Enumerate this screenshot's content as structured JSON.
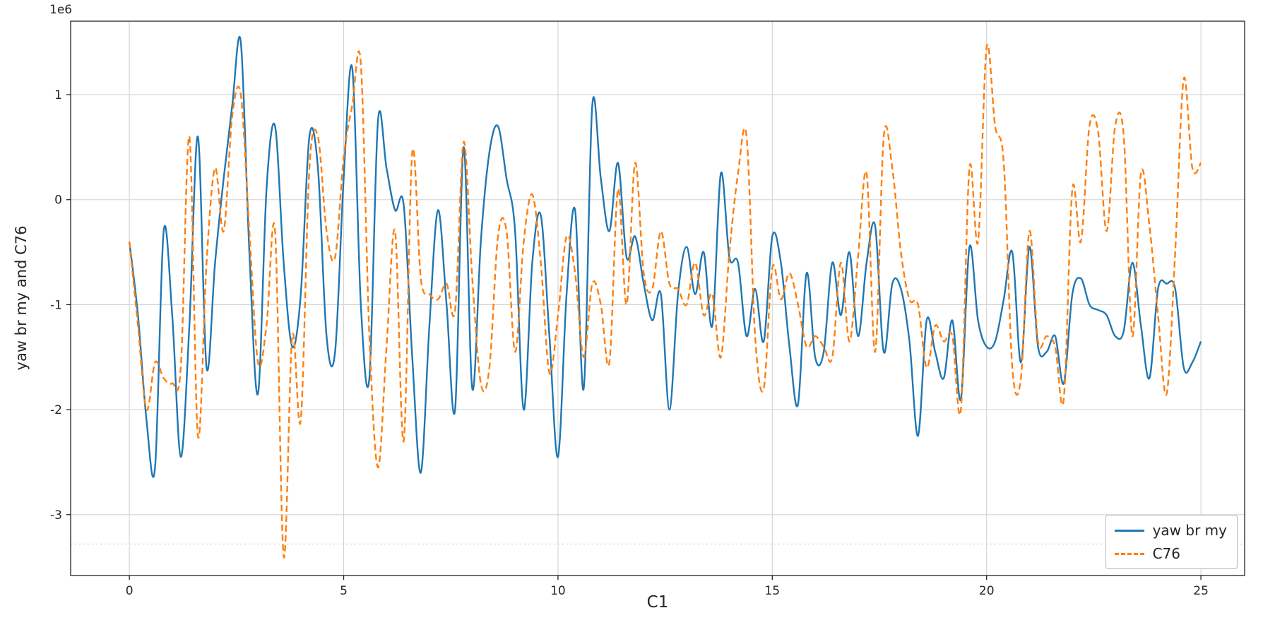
{
  "figure": {
    "offset_text": "1e6",
    "background": "#ffffff"
  },
  "chart_data": {
    "type": "line",
    "title": "",
    "xlabel": "C1",
    "ylabel": "yaw br my and C76",
    "y_offset_multiplier": "1e6",
    "y_values_unit": "1e6 (all y values below are in millions)",
    "xlim": [
      -1.37,
      26.02
    ],
    "ylim": [
      -3.58,
      1.7
    ],
    "xticks": [
      0,
      5,
      10,
      15,
      20,
      25
    ],
    "yticks": [
      1,
      0,
      -1,
      -2,
      -3
    ],
    "grid": true,
    "grid_color": "#d3d3d3",
    "extra_gridline": {
      "y": -3.28,
      "style": "dotted",
      "color": "#c9c9c9"
    },
    "legend_position": "lower right",
    "x": {
      "start": 0,
      "step": 0.2,
      "count": 126
    },
    "series": [
      {
        "name": "yaw br my",
        "color": "#1f77b4",
        "style": "solid",
        "y": [
          -0.4,
          -1.1,
          -2.1,
          -2.55,
          -0.3,
          -1.1,
          -2.45,
          -1.2,
          0.6,
          -1.6,
          -0.6,
          0.2,
          0.9,
          1.5,
          -0.5,
          -1.85,
          0.1,
          0.7,
          -0.6,
          -1.4,
          -0.9,
          0.6,
          0.3,
          -1.3,
          -1.45,
          0.2,
          1.25,
          -1.0,
          -1.7,
          0.75,
          0.3,
          -0.1,
          -0.05,
          -1.5,
          -2.6,
          -1.2,
          -0.1,
          -1.0,
          -2.0,
          0.5,
          -1.8,
          -0.4,
          0.45,
          0.7,
          0.2,
          -0.3,
          -2.0,
          -0.6,
          -0.15,
          -1.3,
          -2.45,
          -0.9,
          -0.1,
          -1.8,
          0.9,
          0.2,
          -0.3,
          0.35,
          -0.55,
          -0.35,
          -0.8,
          -1.15,
          -0.9,
          -2.0,
          -0.9,
          -0.45,
          -0.9,
          -0.5,
          -1.2,
          0.25,
          -0.55,
          -0.6,
          -1.3,
          -0.85,
          -1.35,
          -0.35,
          -0.6,
          -1.4,
          -1.95,
          -0.7,
          -1.5,
          -1.45,
          -0.6,
          -1.1,
          -0.5,
          -1.3,
          -0.6,
          -0.25,
          -1.45,
          -0.8,
          -0.85,
          -1.35,
          -2.25,
          -1.15,
          -1.45,
          -1.7,
          -1.15,
          -1.9,
          -0.45,
          -1.15,
          -1.4,
          -1.35,
          -0.95,
          -0.5,
          -1.55,
          -0.45,
          -1.4,
          -1.45,
          -1.3,
          -1.75,
          -0.9,
          -0.75,
          -1.0,
          -1.05,
          -1.1,
          -1.3,
          -1.25,
          -0.6,
          -1.2,
          -1.7,
          -0.85,
          -0.8,
          -0.85,
          -1.6,
          -1.55,
          -1.35
        ]
      },
      {
        "name": "C76",
        "color": "#ff7f0e",
        "style": "dashed",
        "y": [
          -0.4,
          -1.2,
          -2.0,
          -1.55,
          -1.7,
          -1.75,
          -1.6,
          0.6,
          -2.25,
          -0.6,
          0.3,
          -0.3,
          0.8,
          1.0,
          -0.3,
          -1.55,
          -1.2,
          -0.3,
          -3.4,
          -1.3,
          -2.1,
          0.3,
          0.6,
          -0.3,
          -0.55,
          0.4,
          0.9,
          1.3,
          -1.3,
          -2.55,
          -1.4,
          -0.3,
          -2.3,
          0.45,
          -0.75,
          -0.9,
          -0.95,
          -0.8,
          -1.05,
          0.55,
          -0.75,
          -1.75,
          -1.6,
          -0.35,
          -0.3,
          -1.45,
          -0.4,
          0.05,
          -0.6,
          -1.65,
          -1.1,
          -0.35,
          -0.7,
          -1.5,
          -0.8,
          -1.0,
          -1.55,
          0.1,
          -1.0,
          0.35,
          -0.7,
          -0.85,
          -0.3,
          -0.8,
          -0.85,
          -1.0,
          -0.6,
          -1.1,
          -0.9,
          -1.5,
          -0.5,
          0.25,
          0.6,
          -1.3,
          -1.8,
          -0.65,
          -0.95,
          -0.7,
          -1.0,
          -1.4,
          -1.3,
          -1.4,
          -1.5,
          -0.6,
          -1.35,
          -0.55,
          0.25,
          -1.45,
          0.6,
          0.3,
          -0.5,
          -0.95,
          -1.0,
          -1.6,
          -1.2,
          -1.35,
          -1.3,
          -2.0,
          0.3,
          -0.4,
          1.45,
          0.7,
          0.35,
          -1.6,
          -1.7,
          -0.3,
          -1.35,
          -1.3,
          -1.4,
          -1.9,
          0.1,
          -0.4,
          0.7,
          0.65,
          -0.3,
          0.7,
          0.6,
          -1.3,
          0.25,
          -0.25,
          -1.1,
          -1.85,
          -0.5,
          1.15,
          0.3,
          0.35
        ]
      }
    ]
  }
}
